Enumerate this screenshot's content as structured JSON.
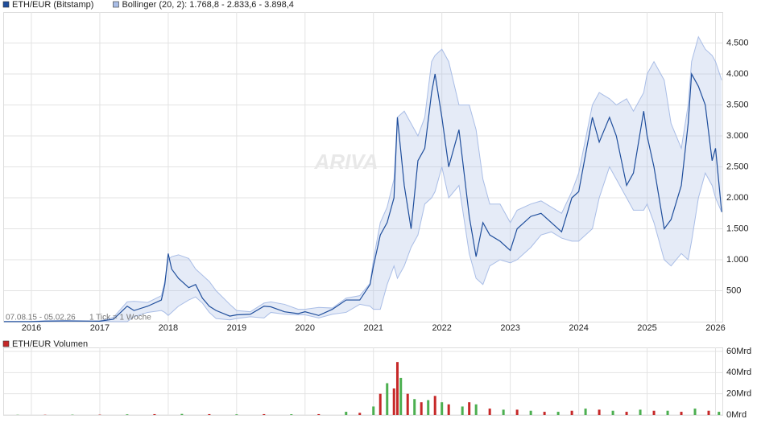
{
  "chart_data": [
    {
      "type": "line",
      "watermark": "ARIVA",
      "range_note": "07.08.15 - 05.02.26",
      "tick_note": "1 Tick = 1 Woche",
      "x": [
        2015.6,
        2016.0,
        2016.2,
        2016.5,
        2016.9,
        2017.0,
        2017.2,
        2017.4,
        2017.5,
        2017.7,
        2017.9,
        2017.95,
        2018.0,
        2018.05,
        2018.15,
        2018.3,
        2018.4,
        2018.5,
        2018.6,
        2018.7,
        2018.9,
        2019.0,
        2019.2,
        2019.4,
        2019.5,
        2019.7,
        2019.9,
        2020.0,
        2020.2,
        2020.4,
        2020.6,
        2020.8,
        2020.95,
        2021.0,
        2021.1,
        2021.2,
        2021.3,
        2021.35,
        2021.45,
        2021.55,
        2021.65,
        2021.75,
        2021.85,
        2021.9,
        2022.0,
        2022.1,
        2022.25,
        2022.4,
        2022.5,
        2022.6,
        2022.7,
        2022.85,
        2023.0,
        2023.1,
        2023.3,
        2023.45,
        2023.6,
        2023.75,
        2023.9,
        2024.0,
        2024.2,
        2024.3,
        2024.45,
        2024.55,
        2024.7,
        2024.8,
        2024.95,
        2025.0,
        2025.1,
        2025.25,
        2025.35,
        2025.5,
        2025.6,
        2025.65,
        2025.75,
        2025.85,
        2025.95,
        2026.0,
        2026.09
      ],
      "series": [
        {
          "name": "ETH/EUR (Bitstamp)",
          "color": "#1f4e9c",
          "values": [
            1,
            1,
            9,
            12,
            9,
            8,
            40,
            250,
            180,
            250,
            350,
            600,
            1100,
            850,
            700,
            550,
            600,
            380,
            250,
            180,
            90,
            110,
            120,
            250,
            240,
            160,
            130,
            160,
            100,
            200,
            350,
            350,
            600,
            900,
            1400,
            1600,
            2000,
            3300,
            2200,
            1500,
            2600,
            2800,
            3700,
            4000,
            3300,
            2500,
            3100,
            1700,
            1050,
            1600,
            1400,
            1300,
            1150,
            1500,
            1700,
            1750,
            1600,
            1450,
            2000,
            2100,
            3300,
            2900,
            3300,
            3000,
            2200,
            2400,
            3400,
            3000,
            2500,
            1500,
            1650,
            2200,
            3200,
            4000,
            3800,
            3500,
            2600,
            2800,
            1770
          ]
        },
        {
          "name": "Bollinger (20, 2): 1.768,8 - 2.833,6 - 3.898,4",
          "color": "#a9bde6",
          "upper": [
            5,
            5,
            15,
            18,
            12,
            12,
            70,
            320,
            330,
            310,
            420,
            650,
            1000,
            1050,
            1080,
            1020,
            850,
            750,
            650,
            500,
            280,
            180,
            160,
            300,
            320,
            280,
            200,
            200,
            230,
            220,
            380,
            420,
            620,
            1000,
            1600,
            1850,
            2300,
            3300,
            3400,
            3200,
            3000,
            3300,
            4200,
            4300,
            4400,
            4200,
            3500,
            3500,
            3100,
            2300,
            1900,
            1900,
            1600,
            1800,
            1900,
            1950,
            1850,
            1750,
            2100,
            2400,
            3500,
            3700,
            3600,
            3500,
            3600,
            3400,
            3700,
            4000,
            4200,
            3900,
            3200,
            2800,
            3500,
            4200,
            4600,
            4400,
            4300,
            4200,
            3900
          ],
          "lower": [
            0,
            0,
            3,
            6,
            6,
            5,
            0,
            0,
            80,
            150,
            180,
            150,
            100,
            150,
            250,
            350,
            400,
            300,
            150,
            50,
            30,
            50,
            80,
            60,
            150,
            120,
            110,
            110,
            60,
            120,
            150,
            280,
            250,
            200,
            200,
            600,
            900,
            700,
            900,
            1200,
            1400,
            1900,
            2000,
            2100,
            2500,
            2000,
            2200,
            1100,
            700,
            600,
            900,
            1000,
            950,
            1000,
            1200,
            1400,
            1450,
            1350,
            1300,
            1300,
            1500,
            2000,
            2500,
            2300,
            2000,
            1800,
            1800,
            1900,
            1600,
            1000,
            900,
            1100,
            1000,
            1300,
            2000,
            2400,
            2200,
            2000,
            1770
          ]
        }
      ],
      "xlim": [
        2015.6,
        2026.1
      ],
      "xticks": [
        2016,
        2017,
        2018,
        2019,
        2020,
        2021,
        2022,
        2023,
        2024,
        2025,
        2026
      ],
      "ylim": [
        0,
        5000
      ],
      "yticks": [
        500,
        {
          "value": 1000,
          "label": "1.000"
        },
        {
          "value": 1500,
          "label": "1.500"
        },
        {
          "value": 2000,
          "label": "2.000"
        },
        {
          "value": 2500,
          "label": "2.500"
        },
        {
          "value": 3000,
          "label": "3.000"
        },
        {
          "value": 3500,
          "label": "3.500"
        },
        {
          "value": 4000,
          "label": "4.000"
        },
        {
          "value": 4500,
          "label": "4.500"
        }
      ],
      "grid": true
    },
    {
      "type": "bar",
      "series": [
        {
          "name": "ETH/EUR Volumen",
          "color": "#c62828"
        }
      ],
      "x": [
        2015.8,
        2016.2,
        2016.6,
        2017.0,
        2017.4,
        2017.8,
        2018.2,
        2018.6,
        2019.0,
        2019.4,
        2019.8,
        2020.2,
        2020.6,
        2020.8,
        2021.0,
        2021.1,
        2021.2,
        2021.3,
        2021.35,
        2021.4,
        2021.5,
        2021.6,
        2021.7,
        2021.8,
        2021.9,
        2022.0,
        2022.1,
        2022.3,
        2022.4,
        2022.5,
        2022.7,
        2022.9,
        2023.1,
        2023.3,
        2023.5,
        2023.7,
        2023.9,
        2024.1,
        2024.3,
        2024.5,
        2024.7,
        2024.9,
        2025.1,
        2025.3,
        2025.5,
        2025.7,
        2025.9,
        2026.05
      ],
      "values": [
        0.2,
        0.2,
        0.3,
        0.3,
        0.6,
        0.8,
        1,
        0.8,
        0.6,
        0.8,
        0.7,
        0.8,
        3,
        2,
        8,
        20,
        30,
        25,
        50,
        35,
        20,
        15,
        12,
        14,
        18,
        12,
        10,
        8,
        12,
        10,
        6,
        5,
        5,
        4,
        3,
        3,
        4,
        6,
        5,
        4,
        3,
        5,
        4,
        4,
        3,
        6,
        4,
        3
      ],
      "colors": [
        "#4caf50",
        "#c62828",
        "#4caf50",
        "#c62828",
        "#4caf50",
        "#c62828",
        "#4caf50",
        "#c62828",
        "#4caf50",
        "#c62828",
        "#4caf50",
        "#c62828",
        "#4caf50",
        "#c62828",
        "#4caf50",
        "#c62828",
        "#4caf50",
        "#c62828",
        "#c62828",
        "#4caf50",
        "#c62828",
        "#4caf50",
        "#c62828",
        "#4caf50",
        "#c62828",
        "#4caf50",
        "#c62828",
        "#4caf50",
        "#c62828",
        "#4caf50",
        "#c62828",
        "#4caf50",
        "#c62828",
        "#4caf50",
        "#c62828",
        "#4caf50",
        "#c62828",
        "#4caf50",
        "#c62828",
        "#4caf50",
        "#c62828",
        "#4caf50",
        "#c62828",
        "#4caf50",
        "#c62828",
        "#4caf50",
        "#c62828",
        "#4caf50"
      ],
      "ylim": [
        0,
        60
      ],
      "yticks": [
        {
          "value": 0,
          "label": "0Mrd"
        },
        {
          "value": 20,
          "label": "20Mrd"
        },
        {
          "value": 40,
          "label": "40Mrd"
        },
        {
          "value": 60,
          "label": "60Mrd"
        }
      ],
      "grid": true
    }
  ]
}
